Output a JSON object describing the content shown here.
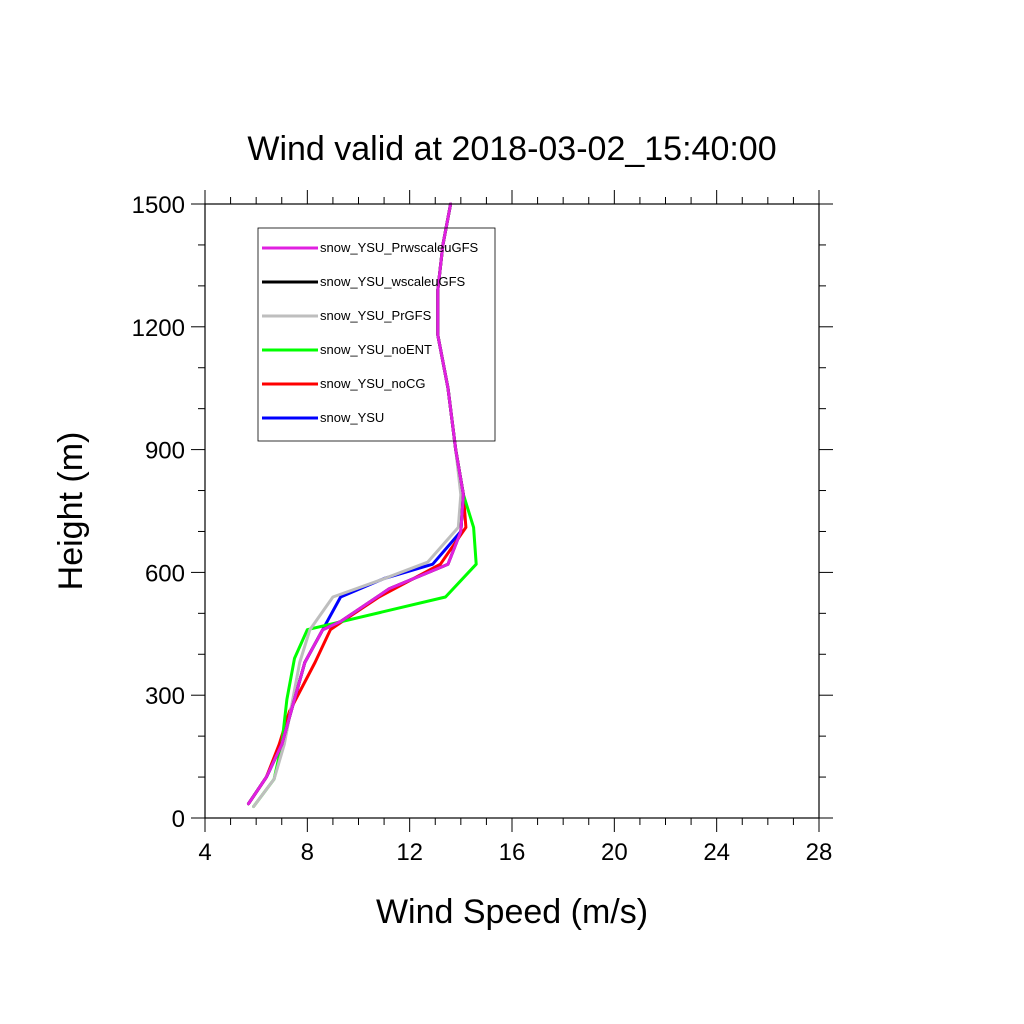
{
  "chart_data": {
    "type": "line",
    "title": "Wind valid at 2018-03-02_15:40:00",
    "xlabel": "Wind Speed (m/s)",
    "ylabel": "Height (m)",
    "xlim": [
      4,
      28
    ],
    "ylim": [
      0,
      1500
    ],
    "xticks": [
      4,
      8,
      12,
      16,
      20,
      24,
      28
    ],
    "yticks": [
      0,
      300,
      600,
      900,
      1200,
      1500
    ],
    "grid": false,
    "legend_position": "top-left",
    "series": [
      {
        "name": "snow_YSU_PrwscaleuGFS",
        "color": "#e020e0",
        "points": [
          [
            5.7,
            35
          ],
          [
            6.4,
            100
          ],
          [
            7.0,
            180
          ],
          [
            7.5,
            290
          ],
          [
            7.9,
            380
          ],
          [
            8.6,
            460
          ],
          [
            9.3,
            480
          ],
          [
            11.2,
            560
          ],
          [
            13.5,
            620
          ],
          [
            14.0,
            700
          ],
          [
            14.1,
            790
          ],
          [
            13.8,
            900
          ],
          [
            13.5,
            1050
          ],
          [
            13.1,
            1180
          ],
          [
            13.1,
            1290
          ],
          [
            13.3,
            1400
          ],
          [
            13.6,
            1500
          ]
        ]
      },
      {
        "name": "snow_YSU_wscaleuGFS",
        "color": "#000000",
        "points": [
          [
            5.7,
            35
          ],
          [
            6.4,
            100
          ],
          [
            7.0,
            180
          ],
          [
            7.5,
            290
          ],
          [
            7.9,
            380
          ],
          [
            8.6,
            460
          ],
          [
            9.3,
            480
          ],
          [
            11.2,
            560
          ],
          [
            13.5,
            620
          ],
          [
            14.0,
            700
          ],
          [
            14.1,
            790
          ],
          [
            13.8,
            900
          ],
          [
            13.5,
            1050
          ],
          [
            13.1,
            1180
          ],
          [
            13.1,
            1290
          ],
          [
            13.3,
            1400
          ],
          [
            13.6,
            1500
          ]
        ]
      },
      {
        "name": "snow_YSU_PrGFS",
        "color": "#bebebe",
        "points": [
          [
            5.9,
            28
          ],
          [
            6.7,
            95
          ],
          [
            7.1,
            180
          ],
          [
            7.4,
            280
          ],
          [
            7.7,
            380
          ],
          [
            8.1,
            460
          ],
          [
            9.0,
            540
          ],
          [
            10.8,
            580
          ],
          [
            12.7,
            625
          ],
          [
            13.9,
            710
          ],
          [
            14.0,
            790
          ],
          [
            13.8,
            900
          ],
          [
            13.5,
            1050
          ],
          [
            13.1,
            1180
          ],
          [
            13.1,
            1290
          ],
          [
            13.3,
            1400
          ],
          [
            13.6,
            1500
          ]
        ]
      },
      {
        "name": "snow_YSU_noENT",
        "color": "#00ff00",
        "points": [
          [
            5.9,
            28
          ],
          [
            6.7,
            95
          ],
          [
            7.0,
            180
          ],
          [
            7.2,
            290
          ],
          [
            7.5,
            390
          ],
          [
            8.0,
            460
          ],
          [
            13.4,
            540
          ],
          [
            14.6,
            620
          ],
          [
            14.5,
            710
          ],
          [
            14.1,
            790
          ],
          [
            13.8,
            900
          ],
          [
            13.5,
            1050
          ],
          [
            13.1,
            1180
          ],
          [
            13.1,
            1290
          ],
          [
            13.3,
            1400
          ],
          [
            13.6,
            1500
          ]
        ]
      },
      {
        "name": "snow_YSU_noCG",
        "color": "#ff0000",
        "points": [
          [
            5.7,
            35
          ],
          [
            6.4,
            100
          ],
          [
            6.9,
            180
          ],
          [
            7.3,
            260
          ],
          [
            7.8,
            320
          ],
          [
            8.3,
            380
          ],
          [
            8.9,
            460
          ],
          [
            9.6,
            490
          ],
          [
            10.8,
            540
          ],
          [
            13.2,
            620
          ],
          [
            14.2,
            710
          ],
          [
            14.1,
            790
          ],
          [
            13.8,
            900
          ],
          [
            13.5,
            1050
          ],
          [
            13.1,
            1180
          ],
          [
            13.1,
            1290
          ],
          [
            13.3,
            1400
          ],
          [
            13.6,
            1500
          ]
        ]
      },
      {
        "name": "snow_YSU",
        "color": "#0000ff",
        "points": [
          [
            5.7,
            35
          ],
          [
            6.4,
            100
          ],
          [
            7.0,
            180
          ],
          [
            7.5,
            290
          ],
          [
            7.9,
            380
          ],
          [
            8.6,
            460
          ],
          [
            9.3,
            540
          ],
          [
            11.0,
            585
          ],
          [
            12.9,
            620
          ],
          [
            14.0,
            700
          ],
          [
            14.1,
            790
          ],
          [
            13.8,
            900
          ],
          [
            13.5,
            1050
          ],
          [
            13.1,
            1180
          ],
          [
            13.1,
            1290
          ],
          [
            13.3,
            1400
          ],
          [
            13.6,
            1500
          ]
        ]
      }
    ]
  }
}
